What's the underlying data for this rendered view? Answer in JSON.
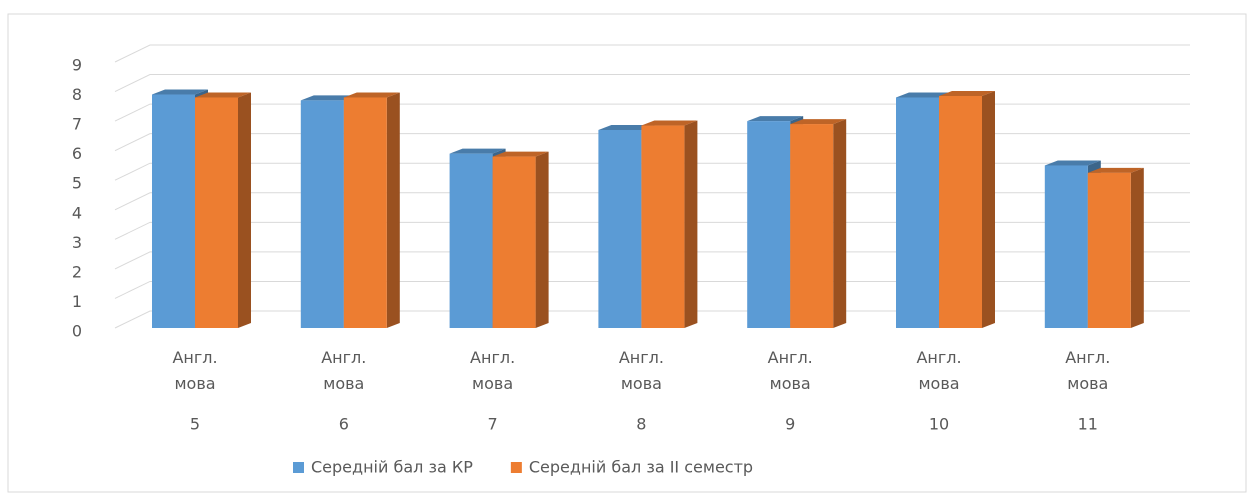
{
  "chart_data": {
    "type": "bar3d",
    "categories": [
      "5",
      "6",
      "7",
      "8",
      "9",
      "10",
      "11"
    ],
    "category_labels": [
      "Англ. мова",
      "Англ. мова",
      "Англ. мова",
      "Англ. мова",
      "Англ. мова",
      "Англ. мова",
      "Англ. мова"
    ],
    "series": [
      {
        "name": "Середній бал за КР",
        "color": "#5b9bd5",
        "values": [
          7.9,
          7.7,
          5.9,
          6.7,
          7.0,
          7.8,
          5.5
        ]
      },
      {
        "name": "Середній бал за II семестр",
        "color": "#ed7d31",
        "values": [
          7.8,
          7.8,
          5.8,
          6.85,
          6.9,
          7.85,
          5.25
        ]
      }
    ],
    "ylim": [
      0,
      9
    ],
    "yticks": [
      0,
      1,
      2,
      3,
      4,
      5,
      6,
      7,
      8,
      9
    ],
    "grid": true,
    "legend": "bottom"
  }
}
